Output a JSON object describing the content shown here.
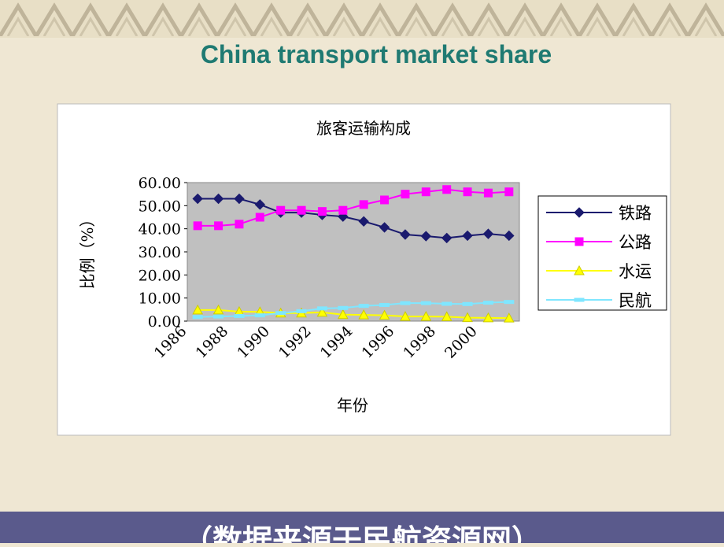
{
  "slide_title": "China transport market share",
  "footer": "（数据来源于民航资源网）",
  "chart_data": {
    "type": "line",
    "title": "旅客运输构成",
    "x_label": "年份",
    "y_label": "比例（%）",
    "categories": [
      "1986",
      null,
      "1988",
      null,
      "1990",
      null,
      "1992",
      null,
      "1994",
      null,
      "1996",
      null,
      "1998",
      null,
      "2000",
      null
    ],
    "series": [
      {
        "name": "铁路",
        "color": "#1a1a6e",
        "marker": "diamond",
        "values": [
          53,
          53,
          53,
          50.5,
          47,
          47,
          46,
          45.3,
          43.2,
          40.6,
          37.5,
          36.8,
          36,
          37,
          37.8,
          37
        ]
      },
      {
        "name": "公路",
        "color": "#ff00ff",
        "marker": "square",
        "values": [
          41.3,
          41.3,
          42,
          45,
          48,
          48,
          47.5,
          48,
          50.5,
          52.5,
          55,
          56,
          57,
          56,
          55.5,
          56
        ]
      },
      {
        "name": "水运",
        "color": "#ffff00",
        "marker": "triangle",
        "values": [
          4.8,
          4.8,
          4.1,
          4.0,
          3.5,
          3.5,
          3.8,
          2.8,
          2.7,
          2.5,
          2.0,
          2.0,
          1.9,
          1.5,
          1.4,
          1.3
        ]
      },
      {
        "name": "民航",
        "color": "#7fe6ff",
        "marker": "dash",
        "values": [
          1.8,
          2.0,
          2.2,
          2.5,
          3.5,
          4.3,
          5.5,
          5.7,
          6.6,
          7.0,
          7.8,
          7.8,
          7.5,
          7.4,
          8.0,
          8.3
        ]
      }
    ],
    "ylim": [
      0,
      60
    ],
    "yticks": [
      {
        "value": 0,
        "label": "0.00"
      },
      {
        "value": 10,
        "label": "10.00"
      },
      {
        "value": 20,
        "label": "20.00"
      },
      {
        "value": 30,
        "label": "30.00"
      },
      {
        "value": 40,
        "label": "40.00"
      },
      {
        "value": 50,
        "label": "50.00"
      },
      {
        "value": 60,
        "label": "60.00"
      }
    ],
    "legend": "right"
  }
}
